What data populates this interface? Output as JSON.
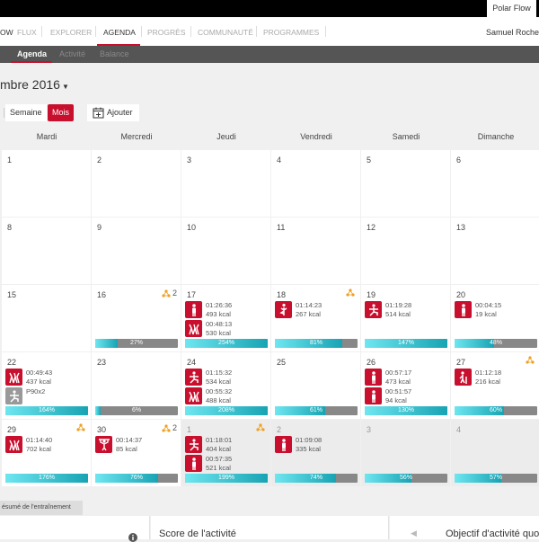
{
  "topbar": {
    "tab": "Polar Flow"
  },
  "nav": {
    "items": [
      "OW",
      "FLUX",
      "EXPLORER",
      "AGENDA",
      "PROGRÈS",
      "COMMUNAUTÉ",
      "PROGRAMMES"
    ],
    "active": "AGENDA",
    "user": "Samuel Roche"
  },
  "subnav": {
    "items": [
      "Agenda",
      "Activité",
      "Balance"
    ],
    "active": "Agenda"
  },
  "title": "mbre 2016",
  "view": {
    "semaine": "Semaine",
    "mois": "Mois",
    "active": "Mois",
    "add": "Ajouter"
  },
  "days": [
    "Mardi",
    "Mercredi",
    "Jeudi",
    "Vendredi",
    "Samedi",
    "Dimanche"
  ],
  "colors": {
    "accent": "#c8102e",
    "progress": "#18a3b3"
  },
  "weeks": [
    [
      {
        "d": "1"
      },
      {
        "d": "2"
      },
      {
        "d": "3"
      },
      {
        "d": "4"
      },
      {
        "d": "5"
      },
      {
        "d": "6"
      }
    ],
    [
      {
        "d": "8"
      },
      {
        "d": "9"
      },
      {
        "d": "10"
      },
      {
        "d": "11"
      },
      {
        "d": "12"
      },
      {
        "d": "13"
      }
    ],
    [
      {
        "d": "15"
      },
      {
        "d": "16",
        "badge": "2",
        "p": 27
      },
      {
        "d": "17",
        "p": 254,
        "acts": [
          {
            "icon": "walking-icon",
            "l1": "01:26:36",
            "l2": "493 kcal"
          },
          {
            "icon": "group-exercise-icon",
            "l1": "00:48:13",
            "l2": "530 kcal"
          }
        ]
      },
      {
        "d": "18",
        "badge": "",
        "p": 81,
        "acts": [
          {
            "icon": "yoga-icon",
            "l1": "01:14:23",
            "l2": "267 kcal"
          }
        ]
      },
      {
        "d": "19",
        "p": 147,
        "acts": [
          {
            "icon": "lunge-icon",
            "l1": "01:19:28",
            "l2": "514 kcal"
          }
        ]
      },
      {
        "d": "20",
        "p": 48,
        "acts": [
          {
            "icon": "walking-icon",
            "l1": "00:04:15",
            "l2": "19 kcal"
          }
        ]
      }
    ],
    [
      {
        "d": "22",
        "p": 164,
        "acts": [
          {
            "icon": "group-exercise-icon",
            "l1": "00:49:43",
            "l2": "437 kcal"
          },
          {
            "icon": "lunge-icon",
            "gray": true,
            "l1": "P90x2",
            "l2": ""
          }
        ]
      },
      {
        "d": "23",
        "p": 6
      },
      {
        "d": "24",
        "p": 208,
        "acts": [
          {
            "icon": "lunge-icon",
            "l1": "01:15:32",
            "l2": "534 kcal"
          },
          {
            "icon": "group-exercise-icon",
            "l1": "00:55:32",
            "l2": "488 kcal"
          }
        ]
      },
      {
        "d": "25",
        "p": 61
      },
      {
        "d": "26",
        "p": 130,
        "acts": [
          {
            "icon": "walking-icon",
            "l1": "00:57:17",
            "l2": "473 kcal"
          },
          {
            "icon": "walking-icon",
            "l1": "00:51:57",
            "l2": "94 kcal"
          }
        ]
      },
      {
        "d": "27",
        "badge": "",
        "p": 60,
        "acts": [
          {
            "icon": "hiking-icon",
            "l1": "01:12:18",
            "l2": "216 kcal"
          }
        ]
      }
    ],
    [
      {
        "d": "29",
        "badge": "",
        "p": 176,
        "acts": [
          {
            "icon": "group-exercise-icon",
            "l1": "01:14:40",
            "l2": "702 kcal"
          }
        ]
      },
      {
        "d": "30",
        "badge": "2",
        "p": 76,
        "acts": [
          {
            "icon": "strength-icon",
            "l1": "00:14:37",
            "l2": "85 kcal"
          }
        ]
      },
      {
        "d": "1",
        "other": true,
        "badge": "",
        "p": 199,
        "acts": [
          {
            "icon": "lunge-icon",
            "l1": "01:18:01",
            "l2": "404 kcal"
          },
          {
            "icon": "walking-icon",
            "l1": "00:57:35",
            "l2": "521 kcal"
          }
        ]
      },
      {
        "d": "2",
        "other": true,
        "p": 74,
        "acts": [
          {
            "icon": "walking-icon",
            "l1": "01:09:08",
            "l2": "335 kcal"
          }
        ]
      },
      {
        "d": "3",
        "other": true,
        "p": 56
      },
      {
        "d": "4",
        "other": true,
        "p": 57
      }
    ]
  ],
  "summary": "ésumé de l'entraînement",
  "panels": {
    "score": "Score de l'activité",
    "objective": "Objectif d'activité quot"
  }
}
